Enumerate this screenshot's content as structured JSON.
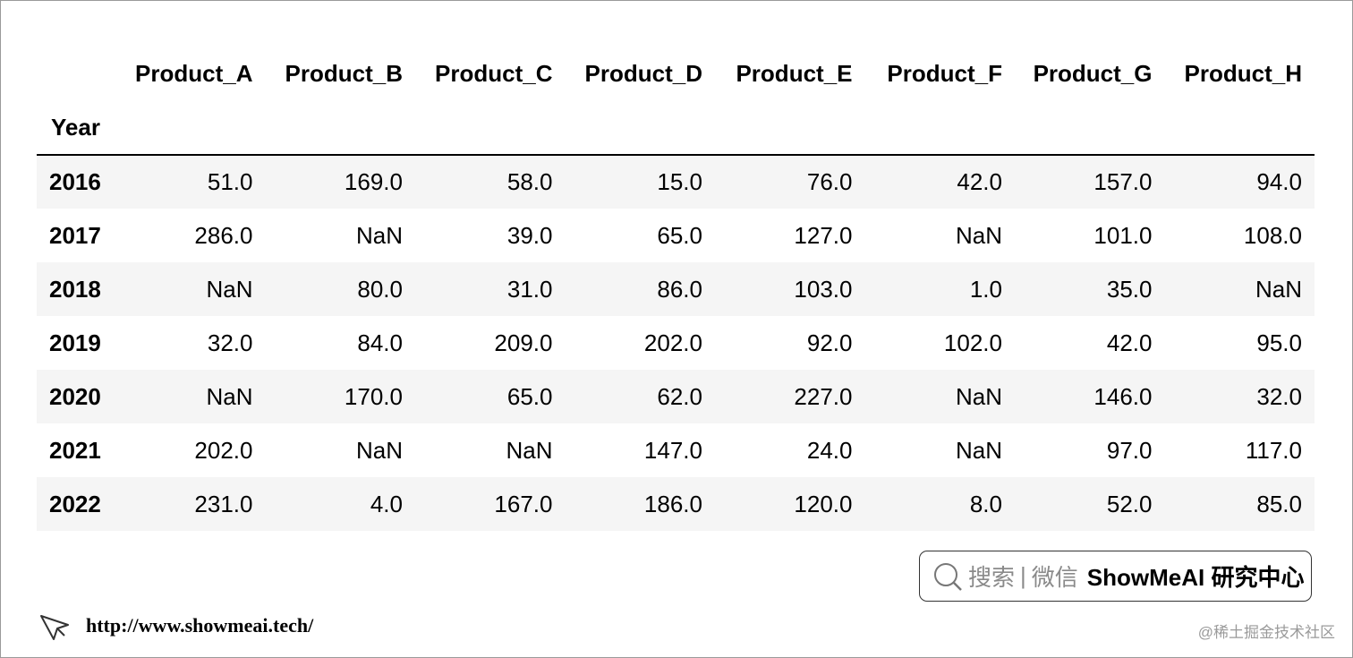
{
  "table": {
    "index_name": "Year",
    "columns": [
      "Product_A",
      "Product_B",
      "Product_C",
      "Product_D",
      "Product_E",
      "Product_F",
      "Product_G",
      "Product_H"
    ],
    "rows": [
      {
        "index": "2016",
        "values": [
          "51.0",
          "169.0",
          "58.0",
          "15.0",
          "76.0",
          "42.0",
          "157.0",
          "94.0"
        ]
      },
      {
        "index": "2017",
        "values": [
          "286.0",
          "NaN",
          "39.0",
          "65.0",
          "127.0",
          "NaN",
          "101.0",
          "108.0"
        ]
      },
      {
        "index": "2018",
        "values": [
          "NaN",
          "80.0",
          "31.0",
          "86.0",
          "103.0",
          "1.0",
          "35.0",
          "NaN"
        ]
      },
      {
        "index": "2019",
        "values": [
          "32.0",
          "84.0",
          "209.0",
          "202.0",
          "92.0",
          "102.0",
          "42.0",
          "95.0"
        ]
      },
      {
        "index": "2020",
        "values": [
          "NaN",
          "170.0",
          "65.0",
          "62.0",
          "227.0",
          "NaN",
          "146.0",
          "32.0"
        ]
      },
      {
        "index": "2021",
        "values": [
          "202.0",
          "NaN",
          "NaN",
          "147.0",
          "24.0",
          "NaN",
          "97.0",
          "117.0"
        ]
      },
      {
        "index": "2022",
        "values": [
          "231.0",
          "4.0",
          "167.0",
          "186.0",
          "120.0",
          "8.0",
          "52.0",
          "85.0"
        ]
      }
    ]
  },
  "search_badge": {
    "icon": "search-icon",
    "search_label": "搜索",
    "separator": "|",
    "wechat_label": "微信",
    "brand": "ShowMeAI 研究中心"
  },
  "footer": {
    "icon": "cursor-arrow-icon",
    "url": "http://www.showmeai.tech/"
  },
  "watermark": "@稀土掘金技术社区"
}
